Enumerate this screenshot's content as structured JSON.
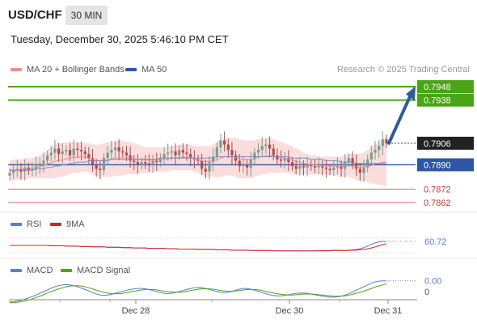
{
  "header": {
    "pair": "USD/CHF",
    "timeframe": "30 MIN",
    "datetime": "Tuesday, December 30, 2025 5:46:10 PM CET",
    "source": "Research © 2025 Trading Central"
  },
  "legend": {
    "bb": "MA 20 + Bollinger Bands",
    "ma50": "MA 50",
    "rsi": "RSI",
    "rsi_ma": "9MA",
    "macd": "MACD",
    "macd_signal": "MACD Signal"
  },
  "colors": {
    "green": "#4aa516",
    "blue": "#2f56a5",
    "red": "#c43a3a",
    "bb_fill": "#fbd9d9",
    "ma20": "#e48a8a",
    "candle_up": "#7a9e8f",
    "candle_down": "#b34a4a",
    "arrow": "#2f5c99"
  },
  "chart_data": [
    {
      "type": "candlestick",
      "panel": "price",
      "x_ticks": [
        "Dec 28",
        "Dec 30",
        "Dec 31"
      ],
      "ylim": [
        0.7855,
        0.7955
      ],
      "levels": [
        {
          "label": "0.7948",
          "value": 0.7948,
          "kind": "resistance"
        },
        {
          "label": "0.7938",
          "value": 0.7938,
          "kind": "resistance"
        },
        {
          "label": "0.7906",
          "value": 0.7906,
          "kind": "last"
        },
        {
          "label": "0.7890",
          "value": 0.789,
          "kind": "pivot"
        },
        {
          "label": "0.7872",
          "value": 0.7872,
          "kind": "support"
        },
        {
          "label": "0.7862",
          "value": 0.7862,
          "kind": "support"
        }
      ],
      "close": [
        0.7884,
        0.7886,
        0.7887,
        0.7885,
        0.7888,
        0.7886,
        0.7887,
        0.7889,
        0.7891,
        0.7893,
        0.7897,
        0.7899,
        0.7902,
        0.7898,
        0.79,
        0.7901,
        0.7897,
        0.7902,
        0.7901,
        0.79,
        0.7898,
        0.7895,
        0.789,
        0.7887,
        0.7886,
        0.7895,
        0.7899,
        0.7901,
        0.7903,
        0.79,
        0.7899,
        0.7897,
        0.7893,
        0.7892,
        0.789,
        0.7892,
        0.7891,
        0.789,
        0.7893,
        0.7892,
        0.7895,
        0.7898,
        0.7899,
        0.79,
        0.7897,
        0.7901,
        0.7899,
        0.7898,
        0.7895,
        0.7894,
        0.7893,
        0.7887,
        0.7885,
        0.7892,
        0.7896,
        0.7903,
        0.7908,
        0.7905,
        0.7901,
        0.7897,
        0.7893,
        0.7889,
        0.789,
        0.7888,
        0.7894,
        0.7899,
        0.7901,
        0.7904,
        0.7905,
        0.7902,
        0.7897,
        0.7894,
        0.7893,
        0.7895,
        0.7892,
        0.7889,
        0.7887,
        0.7889,
        0.7888,
        0.789,
        0.7889,
        0.7888,
        0.7889,
        0.7888,
        0.7887,
        0.7886,
        0.7888,
        0.7889,
        0.7887,
        0.7892,
        0.7895,
        0.7891,
        0.7887,
        0.7884,
        0.7888,
        0.7894,
        0.7899,
        0.7901,
        0.7904,
        0.7909,
        0.7906
      ],
      "bb_upper": [
        0.7893,
        0.7894,
        0.7894,
        0.7894,
        0.7895,
        0.7895,
        0.7895,
        0.7896,
        0.7897,
        0.7899,
        0.7901,
        0.7903,
        0.7905,
        0.7906,
        0.7906,
        0.7907,
        0.7907,
        0.7907,
        0.7907,
        0.7907,
        0.7906,
        0.7906,
        0.7905,
        0.7905,
        0.7905,
        0.7906,
        0.7907,
        0.7907,
        0.7908,
        0.7908,
        0.7908,
        0.7907,
        0.7907,
        0.7906,
        0.7905,
        0.7904,
        0.7903,
        0.7903,
        0.7903,
        0.7903,
        0.7903,
        0.7903,
        0.7904,
        0.7904,
        0.7904,
        0.7905,
        0.7905,
        0.7905,
        0.7905,
        0.7904,
        0.7904,
        0.7904,
        0.7904,
        0.7904,
        0.7905,
        0.7907,
        0.7909,
        0.791,
        0.791,
        0.791,
        0.791,
        0.7909,
        0.7908,
        0.7908,
        0.7908,
        0.7908,
        0.7909,
        0.7909,
        0.791,
        0.791,
        0.7909,
        0.7908,
        0.7907,
        0.7906,
        0.7905,
        0.7904,
        0.7902,
        0.7901,
        0.7899,
        0.7898,
        0.7897,
        0.7897,
        0.7896,
        0.7896,
        0.7896,
        0.7896,
        0.7896,
        0.7896,
        0.7896,
        0.7897,
        0.7898,
        0.7898,
        0.7898,
        0.7898,
        0.7899,
        0.7901,
        0.7903,
        0.7905,
        0.7907,
        0.7909,
        0.791
      ],
      "bb_lower": [
        0.7878,
        0.7878,
        0.7879,
        0.7879,
        0.7879,
        0.788,
        0.788,
        0.788,
        0.788,
        0.788,
        0.788,
        0.788,
        0.788,
        0.7881,
        0.7881,
        0.7882,
        0.7883,
        0.7884,
        0.7884,
        0.7885,
        0.7885,
        0.7884,
        0.7883,
        0.7882,
        0.7881,
        0.7881,
        0.7881,
        0.7881,
        0.7882,
        0.7882,
        0.7882,
        0.7883,
        0.7883,
        0.7883,
        0.7883,
        0.7884,
        0.7884,
        0.7884,
        0.7884,
        0.7885,
        0.7885,
        0.7885,
        0.7885,
        0.7886,
        0.7886,
        0.7886,
        0.7886,
        0.7886,
        0.7886,
        0.7885,
        0.7884,
        0.7882,
        0.7881,
        0.7881,
        0.7881,
        0.7881,
        0.7881,
        0.7882,
        0.7882,
        0.7882,
        0.7881,
        0.788,
        0.788,
        0.788,
        0.788,
        0.7881,
        0.7882,
        0.7883,
        0.7883,
        0.7884,
        0.7884,
        0.7884,
        0.7884,
        0.7884,
        0.7884,
        0.7883,
        0.7883,
        0.7883,
        0.7883,
        0.7883,
        0.7883,
        0.7883,
        0.7883,
        0.7883,
        0.7883,
        0.7882,
        0.7882,
        0.7882,
        0.7881,
        0.7881,
        0.7881,
        0.788,
        0.7879,
        0.7878,
        0.7878,
        0.7877,
        0.7876,
        0.7876,
        0.7875,
        0.7875,
        0.7874
      ],
      "ma50": [
        0.7886,
        0.7886,
        0.7886,
        0.7886,
        0.7886,
        0.7886,
        0.7886,
        0.7887,
        0.7887,
        0.7887,
        0.7888,
        0.7888,
        0.7889,
        0.7889,
        0.789,
        0.789,
        0.7891,
        0.7891,
        0.7892,
        0.7892,
        0.7892,
        0.7893,
        0.7893,
        0.7893,
        0.7893,
        0.7893,
        0.7893,
        0.7894,
        0.7894,
        0.7894,
        0.7894,
        0.7894,
        0.7894,
        0.7894,
        0.7894,
        0.7894,
        0.7894,
        0.7894,
        0.7894,
        0.7894,
        0.7895,
        0.7895,
        0.7895,
        0.7895,
        0.7895,
        0.7895,
        0.7895,
        0.7895,
        0.7895,
        0.7895,
        0.7895,
        0.7895,
        0.7895,
        0.7895,
        0.7895,
        0.7896,
        0.7896,
        0.7896,
        0.7896,
        0.7896,
        0.7896,
        0.7896,
        0.7896,
        0.7896,
        0.7896,
        0.7896,
        0.7896,
        0.7896,
        0.7896,
        0.7896,
        0.7896,
        0.7896,
        0.7896,
        0.7896,
        0.7896,
        0.7895,
        0.7895,
        0.7895,
        0.7895,
        0.7895,
        0.7894,
        0.7894,
        0.7894,
        0.7894,
        0.7893,
        0.7893,
        0.7893,
        0.7893,
        0.7892,
        0.7892,
        0.7892,
        0.7892,
        0.7891,
        0.7891,
        0.7891,
        0.7891,
        0.7891,
        0.7891,
        0.7891,
        0.7891,
        0.7891
      ],
      "projection": {
        "from": 0.7906,
        "to": 0.7946
      }
    },
    {
      "type": "line",
      "panel": "rsi",
      "series": [
        {
          "name": "RSI",
          "last_label": "60.72",
          "values": [
            50,
            50,
            50,
            50,
            50,
            50,
            50,
            50,
            50,
            50,
            50,
            49,
            49,
            49,
            49,
            48,
            48,
            48,
            48,
            47,
            47,
            47,
            46,
            46,
            46,
            46,
            45,
            45,
            45,
            45,
            44,
            44,
            44,
            43,
            43,
            43,
            43,
            42,
            42,
            42,
            42,
            42,
            41,
            41,
            41,
            40,
            40,
            40,
            40,
            40,
            39,
            39,
            39,
            39,
            39,
            38,
            38,
            38,
            38,
            37,
            37,
            37,
            37,
            37,
            36,
            36,
            36,
            36,
            36,
            36,
            35,
            35,
            35,
            35,
            35,
            35,
            35,
            35,
            35,
            35,
            35,
            35,
            36,
            36,
            36,
            36,
            37,
            37,
            36,
            36,
            37,
            38,
            39,
            41,
            44,
            48,
            53,
            57,
            60,
            61,
            61
          ]
        },
        {
          "name": "9MA",
          "values": [
            50,
            50,
            50,
            50,
            50,
            50,
            50,
            50,
            50,
            50,
            50,
            49,
            49,
            49,
            49,
            48,
            48,
            48,
            48,
            47,
            47,
            47,
            46,
            46,
            46,
            46,
            45,
            45,
            45,
            45,
            44,
            44,
            44,
            43,
            43,
            43,
            43,
            42,
            42,
            42,
            42,
            42,
            41,
            41,
            41,
            40,
            40,
            40,
            40,
            40,
            39,
            39,
            39,
            39,
            39,
            38,
            38,
            38,
            38,
            37,
            37,
            37,
            37,
            37,
            36,
            36,
            36,
            36,
            36,
            36,
            35,
            35,
            35,
            35,
            35,
            35,
            35,
            35,
            35,
            35,
            35,
            35,
            35,
            35,
            35,
            35,
            36,
            36,
            36,
            36,
            36,
            37,
            37,
            38,
            39,
            41,
            43,
            46,
            49,
            52,
            55
          ]
        }
      ]
    },
    {
      "type": "line",
      "panel": "macd",
      "zero_label": "0",
      "series": [
        {
          "name": "MACD",
          "last_label": "0.00",
          "values": [
            -3.0,
            -2.9,
            -2.7,
            -2.5,
            -2.2,
            -1.8,
            -1.4,
            -1.0,
            -0.5,
            0.0,
            0.5,
            1.0,
            1.4,
            1.7,
            1.9,
            2.0,
            1.9,
            1.7,
            1.4,
            1.0,
            0.6,
            0.2,
            -0.3,
            -0.7,
            -1.0,
            -1.1,
            -1.0,
            -0.8,
            -0.5,
            -0.2,
            0.1,
            0.4,
            0.6,
            0.8,
            0.9,
            0.9,
            0.8,
            0.6,
            0.3,
            0.0,
            -0.3,
            -0.5,
            -0.6,
            -0.5,
            -0.3,
            0.0,
            0.3,
            0.6,
            0.9,
            1.1,
            1.2,
            1.1,
            0.9,
            0.6,
            0.3,
            0.0,
            -0.2,
            -0.3,
            -0.2,
            0.1,
            0.4,
            0.7,
            0.9,
            0.9,
            0.7,
            0.4,
            0.1,
            -0.3,
            -0.6,
            -0.9,
            -1.1,
            -1.2,
            -1.2,
            -1.1,
            -0.9,
            -0.7,
            -0.5,
            -0.4,
            -0.4,
            -0.5,
            -0.7,
            -0.9,
            -1.1,
            -1.3,
            -1.5,
            -1.6,
            -1.6,
            -1.5,
            -1.3,
            -1.0,
            -0.6,
            -0.1,
            0.4,
            0.9,
            1.4,
            1.9,
            2.4,
            2.8,
            3.0,
            3.1,
            3.1
          ]
        },
        {
          "name": "MACD Signal",
          "values": [
            -3.2,
            -3.2,
            -3.1,
            -2.9,
            -2.7,
            -2.4,
            -2.1,
            -1.7,
            -1.3,
            -0.9,
            -0.4,
            0.0,
            0.4,
            0.8,
            1.1,
            1.4,
            1.6,
            1.7,
            1.7,
            1.6,
            1.4,
            1.1,
            0.8,
            0.4,
            0.1,
            -0.2,
            -0.4,
            -0.6,
            -0.6,
            -0.6,
            -0.5,
            -0.3,
            -0.1,
            0.1,
            0.3,
            0.5,
            0.6,
            0.6,
            0.6,
            0.5,
            0.3,
            0.1,
            0.0,
            -0.1,
            -0.2,
            -0.2,
            -0.1,
            0.1,
            0.3,
            0.5,
            0.7,
            0.8,
            0.8,
            0.8,
            0.7,
            0.5,
            0.3,
            0.2,
            0.1,
            0.1,
            0.2,
            0.3,
            0.5,
            0.6,
            0.6,
            0.6,
            0.5,
            0.3,
            0.1,
            -0.2,
            -0.4,
            -0.6,
            -0.8,
            -0.9,
            -1.0,
            -1.0,
            -0.9,
            -0.8,
            -0.7,
            -0.7,
            -0.7,
            -0.8,
            -0.9,
            -1.0,
            -1.1,
            -1.2,
            -1.3,
            -1.3,
            -1.3,
            -1.2,
            -1.0,
            -0.8,
            -0.5,
            -0.2,
            0.1,
            0.5,
            0.9,
            1.3,
            1.6,
            1.9,
            2.2
          ]
        }
      ]
    }
  ]
}
